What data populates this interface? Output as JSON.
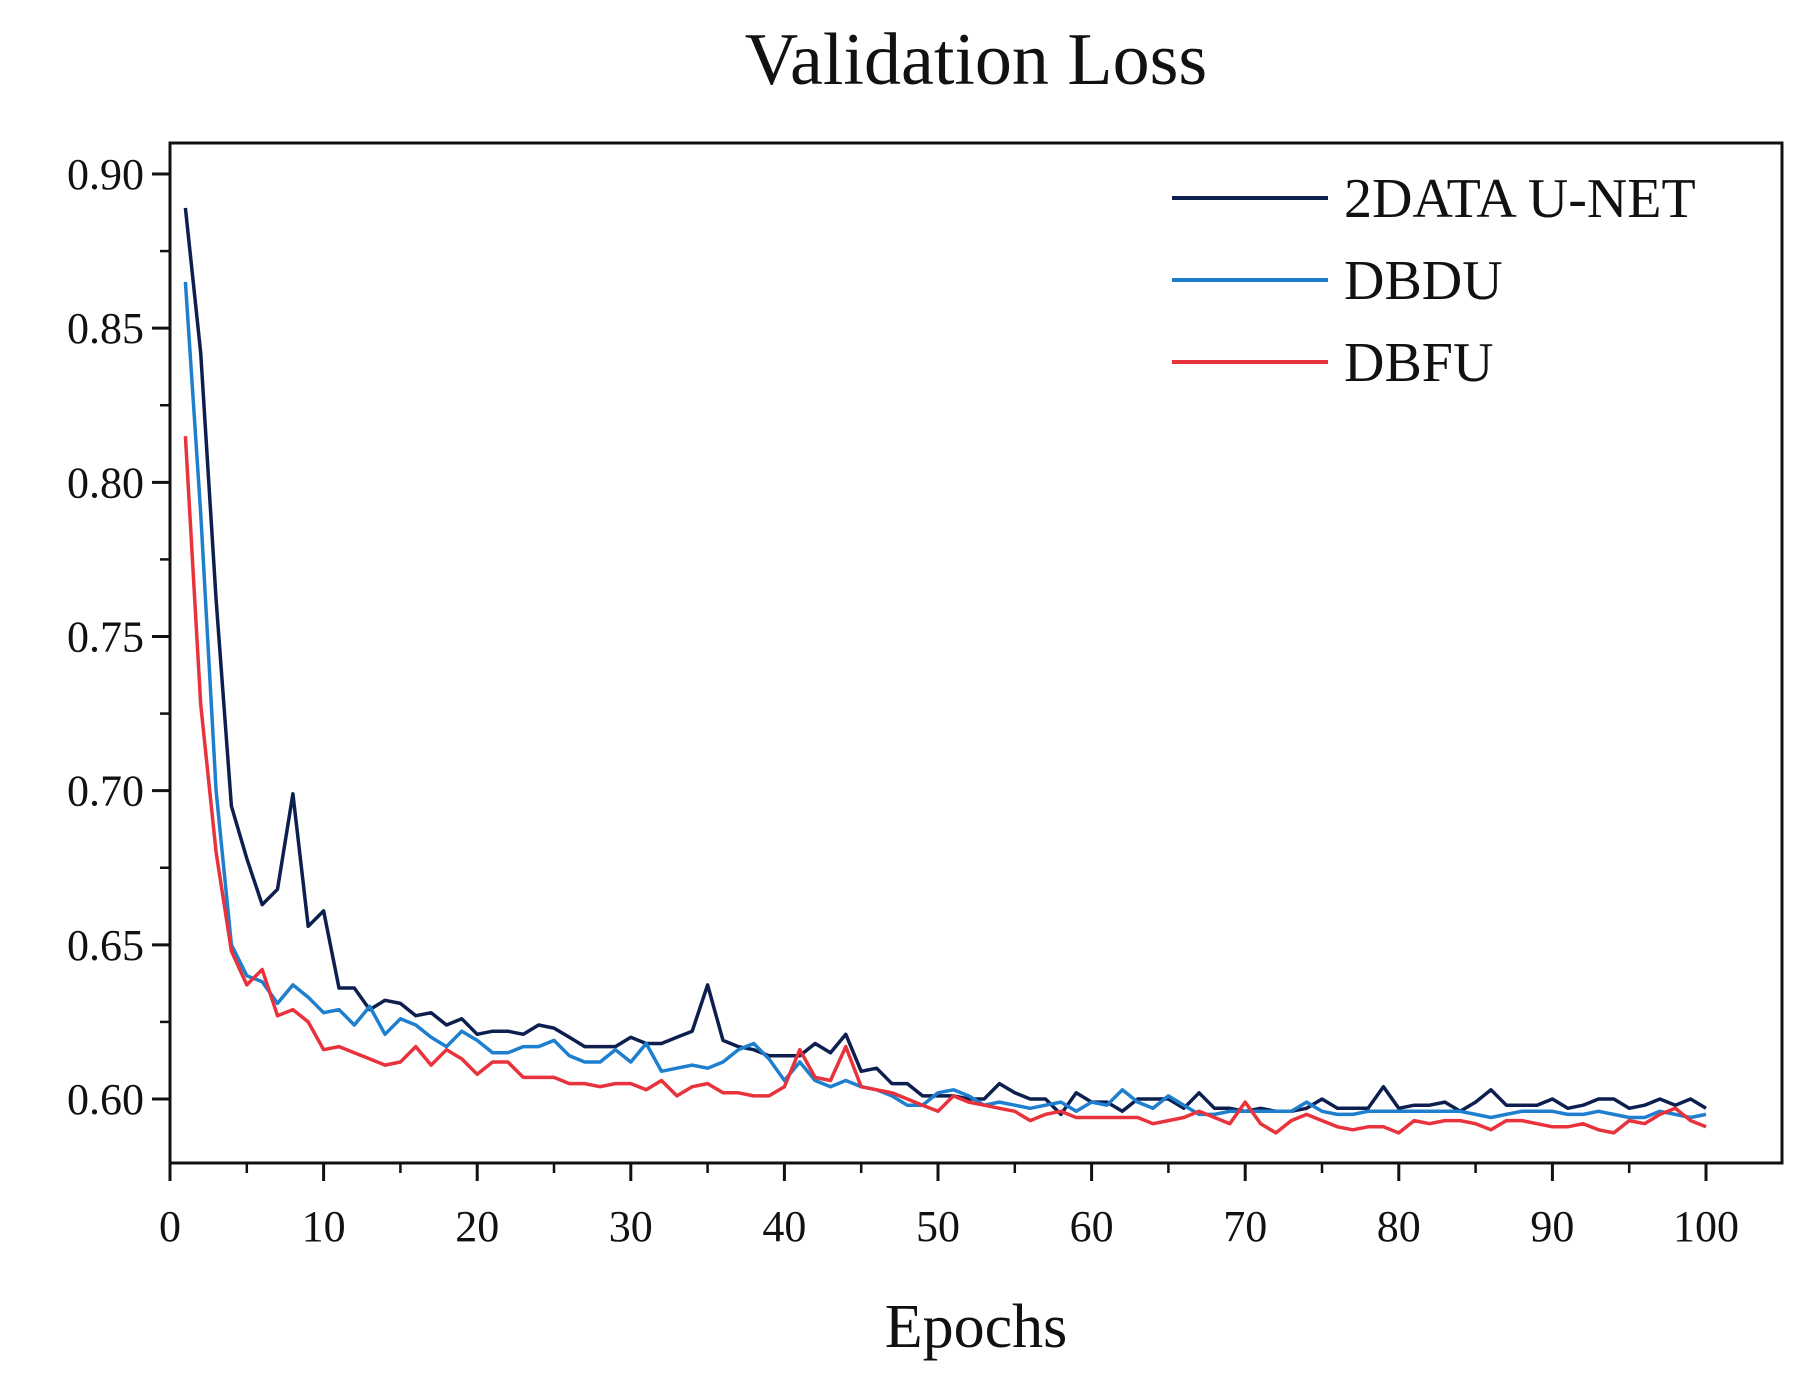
{
  "chart_data": {
    "type": "line",
    "title": "Validation Loss",
    "xlabel": "Epochs",
    "ylabel": "",
    "xlim": [
      0,
      105
    ],
    "ylim": [
      0.58,
      0.91
    ],
    "xticks": [
      0,
      10,
      20,
      30,
      40,
      50,
      60,
      70,
      80,
      90,
      100
    ],
    "xtick_labels": [
      "0",
      "10",
      "20",
      "30",
      "40",
      "50",
      "60",
      "70",
      "80",
      "90",
      "100"
    ],
    "yticks": [
      0.6,
      0.65,
      0.7,
      0.75,
      0.8,
      0.85,
      0.9
    ],
    "ytick_labels": [
      "0.60",
      "0.65",
      "0.70",
      "0.75",
      "0.80",
      "0.85",
      "0.90"
    ],
    "legend_position": "top-right",
    "grid": false,
    "series": [
      {
        "name": "2DATA U-NET",
        "color": "#0d1f4f",
        "x": [
          1,
          2,
          3,
          4,
          5,
          6,
          7,
          8,
          9,
          10,
          11,
          12,
          13,
          14,
          15,
          16,
          17,
          18,
          19,
          20,
          21,
          22,
          23,
          24,
          25,
          26,
          27,
          28,
          29,
          30,
          31,
          32,
          33,
          34,
          35,
          36,
          37,
          38,
          39,
          40,
          41,
          42,
          43,
          44,
          45,
          46,
          47,
          48,
          49,
          50,
          51,
          52,
          53,
          54,
          55,
          56,
          57,
          58,
          59,
          60,
          61,
          62,
          63,
          64,
          65,
          66,
          67,
          68,
          69,
          70,
          71,
          72,
          73,
          74,
          75,
          76,
          77,
          78,
          79,
          80,
          81,
          82,
          83,
          84,
          85,
          86,
          87,
          88,
          89,
          90,
          91,
          92,
          93,
          94,
          95,
          96,
          97,
          98,
          99,
          100
        ],
        "values": [
          0.889,
          0.842,
          0.762,
          0.695,
          0.678,
          0.663,
          0.668,
          0.699,
          0.656,
          0.661,
          0.636,
          0.636,
          0.629,
          0.632,
          0.631,
          0.627,
          0.628,
          0.624,
          0.626,
          0.621,
          0.622,
          0.622,
          0.621,
          0.624,
          0.623,
          0.62,
          0.617,
          0.617,
          0.617,
          0.62,
          0.618,
          0.618,
          0.62,
          0.622,
          0.637,
          0.619,
          0.617,
          0.616,
          0.614,
          0.614,
          0.614,
          0.618,
          0.615,
          0.621,
          0.609,
          0.61,
          0.605,
          0.605,
          0.601,
          0.601,
          0.601,
          0.6,
          0.6,
          0.605,
          0.602,
          0.6,
          0.6,
          0.595,
          0.602,
          0.599,
          0.599,
          0.596,
          0.6,
          0.6,
          0.6,
          0.597,
          0.602,
          0.597,
          0.597,
          0.596,
          0.597,
          0.596,
          0.596,
          0.597,
          0.6,
          0.597,
          0.597,
          0.597,
          0.604,
          0.597,
          0.598,
          0.598,
          0.599,
          0.596,
          0.599,
          0.603,
          0.598,
          0.598,
          0.598,
          0.6,
          0.597,
          0.598,
          0.6,
          0.6,
          0.597,
          0.598,
          0.6,
          0.598,
          0.6,
          0.597
        ]
      },
      {
        "name": "DBDU",
        "color": "#1f7fcf",
        "x": [
          1,
          2,
          3,
          4,
          5,
          6,
          7,
          8,
          9,
          10,
          11,
          12,
          13,
          14,
          15,
          16,
          17,
          18,
          19,
          20,
          21,
          22,
          23,
          24,
          25,
          26,
          27,
          28,
          29,
          30,
          31,
          32,
          33,
          34,
          35,
          36,
          37,
          38,
          39,
          40,
          41,
          42,
          43,
          44,
          45,
          46,
          47,
          48,
          49,
          50,
          51,
          52,
          53,
          54,
          55,
          56,
          57,
          58,
          59,
          60,
          61,
          62,
          63,
          64,
          65,
          66,
          67,
          68,
          69,
          70,
          71,
          72,
          73,
          74,
          75,
          76,
          77,
          78,
          79,
          80,
          81,
          82,
          83,
          84,
          85,
          86,
          87,
          88,
          89,
          90,
          91,
          92,
          93,
          94,
          95,
          96,
          97,
          98,
          99,
          100
        ],
        "values": [
          0.865,
          0.79,
          0.7,
          0.65,
          0.64,
          0.638,
          0.631,
          0.637,
          0.633,
          0.628,
          0.629,
          0.624,
          0.63,
          0.621,
          0.626,
          0.624,
          0.62,
          0.617,
          0.622,
          0.619,
          0.615,
          0.615,
          0.617,
          0.617,
          0.619,
          0.614,
          0.612,
          0.612,
          0.616,
          0.612,
          0.618,
          0.609,
          0.61,
          0.611,
          0.61,
          0.612,
          0.616,
          0.618,
          0.613,
          0.606,
          0.612,
          0.606,
          0.604,
          0.606,
          0.604,
          0.603,
          0.601,
          0.598,
          0.598,
          0.602,
          0.603,
          0.601,
          0.598,
          0.599,
          0.598,
          0.597,
          0.598,
          0.599,
          0.596,
          0.599,
          0.598,
          0.603,
          0.599,
          0.597,
          0.601,
          0.598,
          0.595,
          0.595,
          0.596,
          0.596,
          0.596,
          0.596,
          0.596,
          0.599,
          0.596,
          0.595,
          0.595,
          0.596,
          0.596,
          0.596,
          0.596,
          0.596,
          0.596,
          0.596,
          0.595,
          0.594,
          0.595,
          0.596,
          0.596,
          0.596,
          0.595,
          0.595,
          0.596,
          0.595,
          0.594,
          0.594,
          0.596,
          0.595,
          0.594,
          0.595
        ]
      },
      {
        "name": "DBFU",
        "color": "#e8323c",
        "x": [
          1,
          2,
          3,
          4,
          5,
          6,
          7,
          8,
          9,
          10,
          11,
          12,
          13,
          14,
          15,
          16,
          17,
          18,
          19,
          20,
          21,
          22,
          23,
          24,
          25,
          26,
          27,
          28,
          29,
          30,
          31,
          32,
          33,
          34,
          35,
          36,
          37,
          38,
          39,
          40,
          41,
          42,
          43,
          44,
          45,
          46,
          47,
          48,
          49,
          50,
          51,
          52,
          53,
          54,
          55,
          56,
          57,
          58,
          59,
          60,
          61,
          62,
          63,
          64,
          65,
          66,
          67,
          68,
          69,
          70,
          71,
          72,
          73,
          74,
          75,
          76,
          77,
          78,
          79,
          80,
          81,
          82,
          83,
          84,
          85,
          86,
          87,
          88,
          89,
          90,
          91,
          92,
          93,
          94,
          95,
          96,
          97,
          98,
          99,
          100
        ],
        "values": [
          0.815,
          0.728,
          0.68,
          0.648,
          0.637,
          0.642,
          0.627,
          0.629,
          0.625,
          0.616,
          0.617,
          0.615,
          0.613,
          0.611,
          0.612,
          0.617,
          0.611,
          0.616,
          0.613,
          0.608,
          0.612,
          0.612,
          0.607,
          0.607,
          0.607,
          0.605,
          0.605,
          0.604,
          0.605,
          0.605,
          0.603,
          0.606,
          0.601,
          0.604,
          0.605,
          0.602,
          0.602,
          0.601,
          0.601,
          0.604,
          0.616,
          0.607,
          0.606,
          0.617,
          0.604,
          0.603,
          0.602,
          0.6,
          0.598,
          0.596,
          0.601,
          0.599,
          0.598,
          0.597,
          0.596,
          0.593,
          0.595,
          0.596,
          0.594,
          0.594,
          0.594,
          0.594,
          0.594,
          0.592,
          0.593,
          0.594,
          0.596,
          0.594,
          0.592,
          0.599,
          0.592,
          0.589,
          0.593,
          0.595,
          0.593,
          0.591,
          0.59,
          0.591,
          0.591,
          0.589,
          0.593,
          0.592,
          0.593,
          0.593,
          0.592,
          0.59,
          0.593,
          0.593,
          0.592,
          0.591,
          0.591,
          0.592,
          0.59,
          0.589,
          0.593,
          0.592,
          0.595,
          0.597,
          0.593,
          0.591
        ]
      }
    ]
  }
}
